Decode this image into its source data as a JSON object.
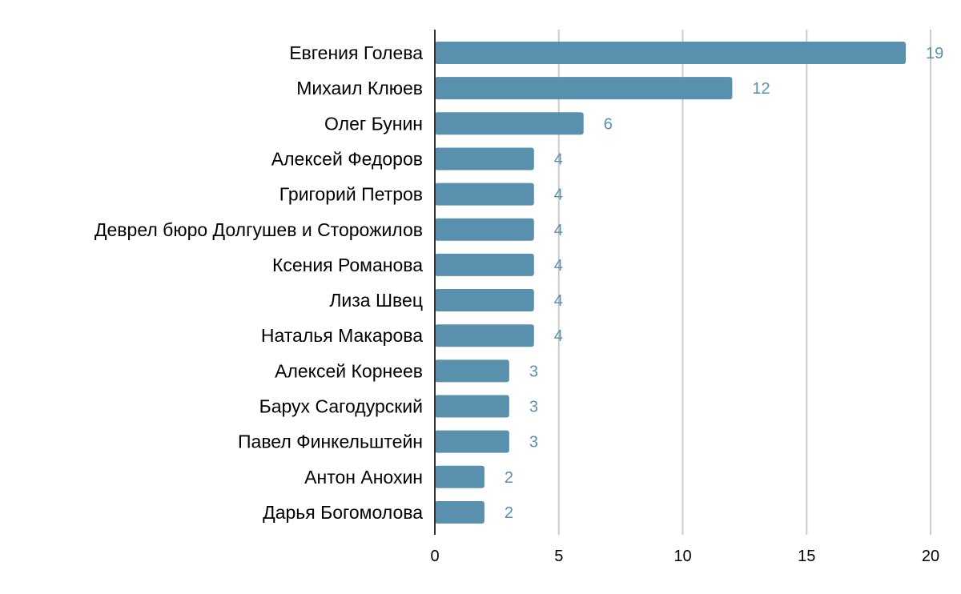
{
  "chart_data": {
    "type": "bar",
    "orientation": "horizontal",
    "categories": [
      "Евгения Голева",
      "Михаил Клюев",
      "Олег Бунин",
      "Алексей Федоров",
      "Григорий Петров",
      "Деврел бюро Долгушев и Сторожилов",
      "Ксения Романова",
      "Лиза Швец",
      "Наталья Макарова",
      "Алексей Корнеев",
      "Барух Сагодурский",
      "Павел Финкельштейн",
      "Антон Анохин",
      "Дарья Богомолова"
    ],
    "values": [
      19,
      12,
      6,
      4,
      4,
      4,
      4,
      4,
      4,
      3,
      3,
      3,
      2,
      2
    ],
    "xlim": [
      0,
      20
    ],
    "xticks": [
      0,
      5,
      10,
      15,
      20
    ],
    "grid": true,
    "data_labels": true,
    "colors": {
      "bar": "#5990ae",
      "label": "#5990ae",
      "grid": "#cccccc",
      "axis": "#333333"
    }
  }
}
